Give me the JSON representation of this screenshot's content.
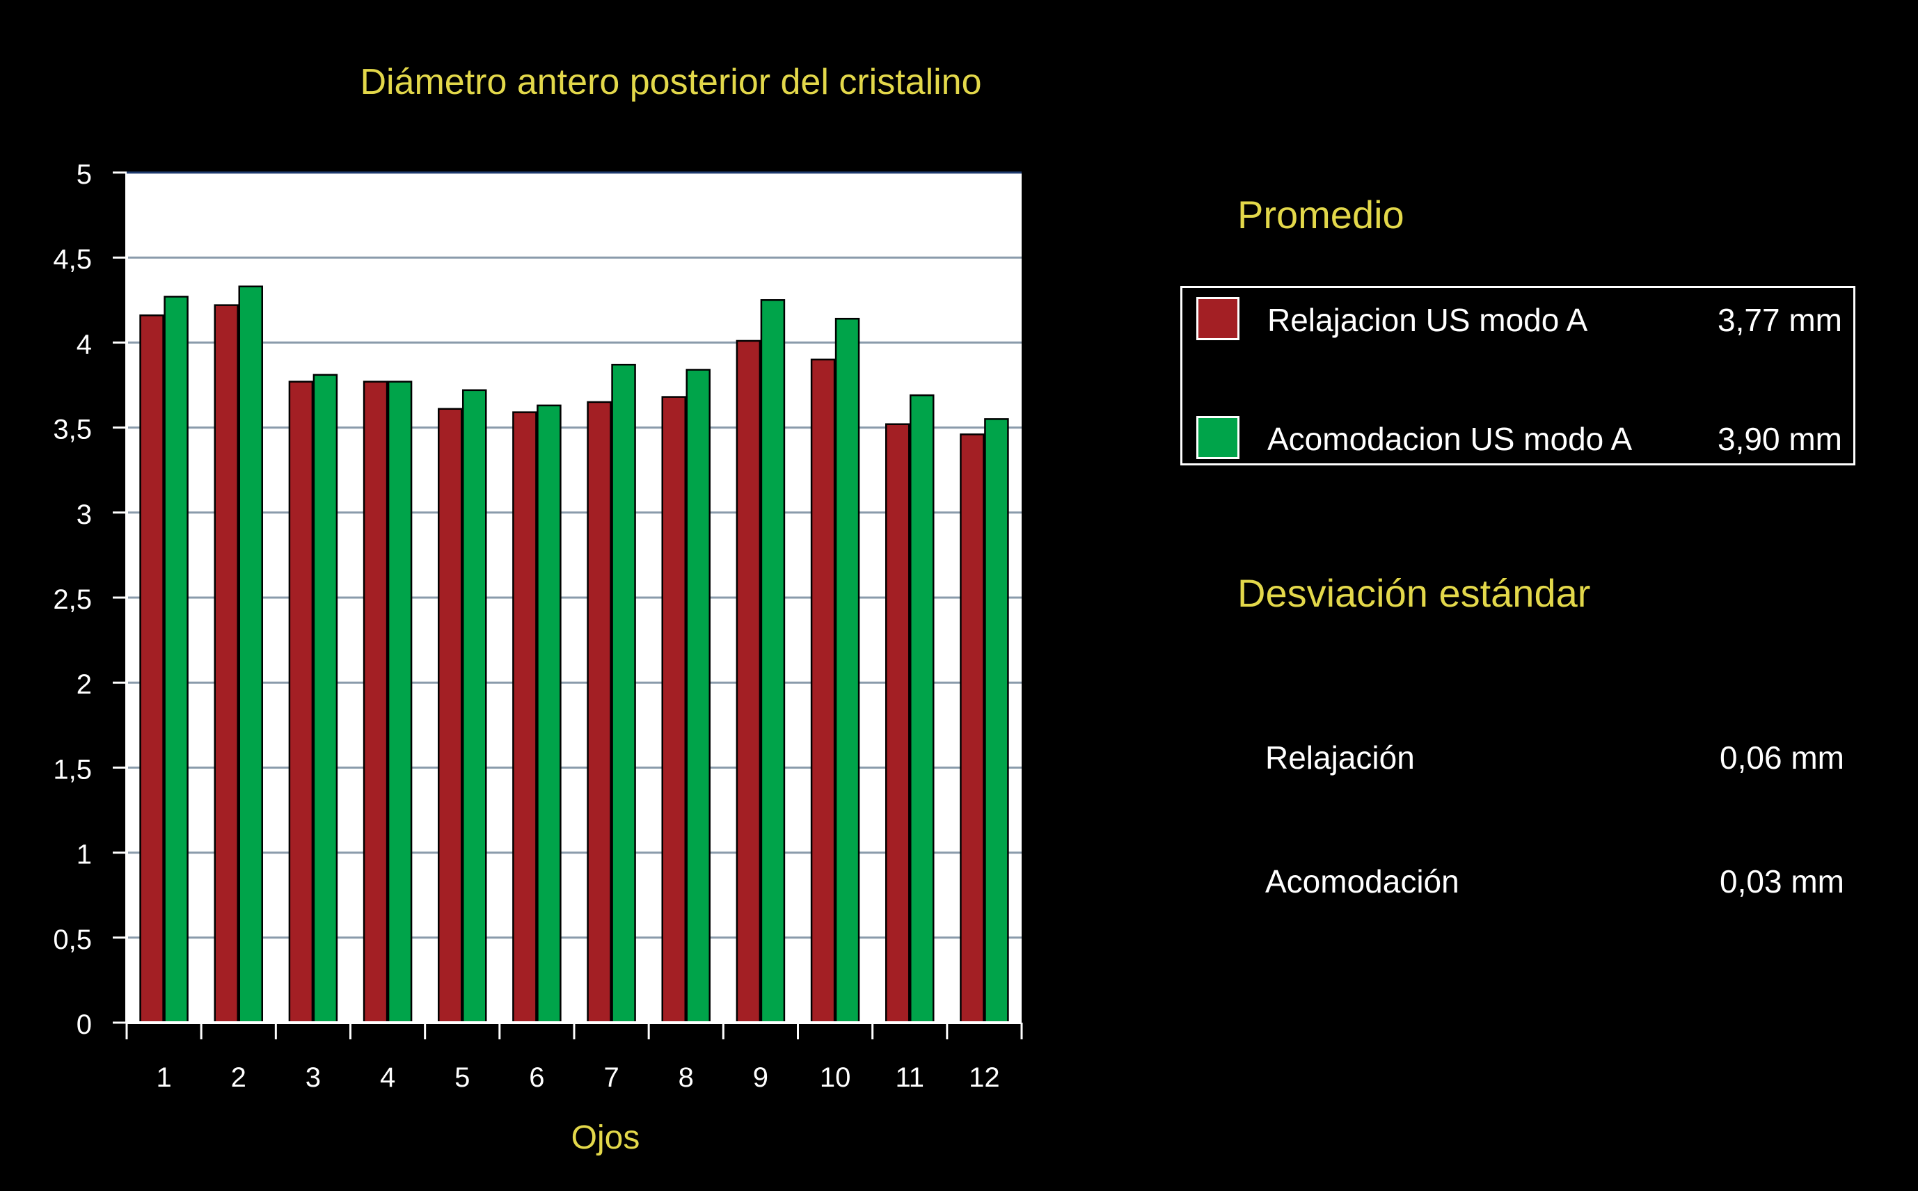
{
  "chart_data": {
    "type": "bar",
    "title": "Diámetro antero posterior del cristalino",
    "xlabel": "Ojos",
    "ylabel": "",
    "ylim": [
      0,
      5
    ],
    "yticks": [
      "0",
      "0,5",
      "1",
      "1,5",
      "2",
      "2,5",
      "3",
      "3,5",
      "4",
      "4,5",
      "5"
    ],
    "categories": [
      "1",
      "2",
      "3",
      "4",
      "5",
      "6",
      "7",
      "8",
      "9",
      "10",
      "11",
      "12"
    ],
    "grid": true,
    "series": [
      {
        "name": "Relajacion US modo A",
        "color": "#a31f24",
        "values": [
          4.16,
          4.22,
          3.77,
          3.77,
          3.61,
          3.59,
          3.65,
          3.68,
          4.01,
          3.9,
          3.52,
          3.46
        ]
      },
      {
        "name": "Acomodacion US modo A",
        "color": "#00a44a",
        "values": [
          4.27,
          4.33,
          3.81,
          3.77,
          3.72,
          3.63,
          3.87,
          3.84,
          4.25,
          4.14,
          3.69,
          3.55
        ]
      }
    ]
  },
  "summary": {
    "promedio_heading": "Promedio",
    "legend": [
      {
        "label": "Relajacion US modo A",
        "value": "3,77 mm",
        "color": "#a31f24"
      },
      {
        "label": "Acomodacion US modo A",
        "value": "3,90 mm",
        "color": "#00a44a"
      }
    ],
    "std_heading": "Desviación estándar",
    "std": [
      {
        "label": "Relajación",
        "value": "0,06 mm"
      },
      {
        "label": "Acomodación",
        "value": "0,03 mm"
      }
    ]
  }
}
